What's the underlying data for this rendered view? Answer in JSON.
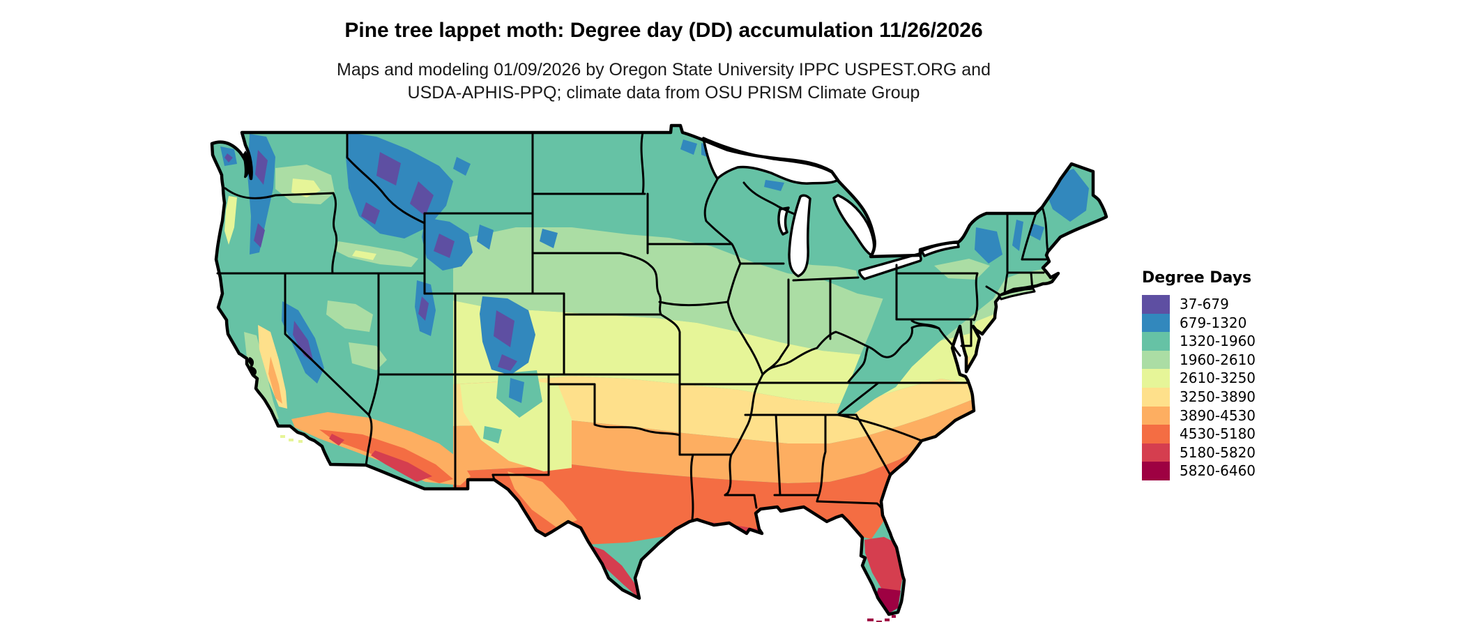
{
  "header": {
    "title": "Pine tree lappet moth: Degree day (DD) accumulation 11/26/2026",
    "subtitle_line1": "Maps and modeling 01/09/2026 by Oregon State University IPPC USPEST.ORG and",
    "subtitle_line2": "USDA-APHIS-PPQ; climate data from OSU PRISM Climate Group"
  },
  "legend": {
    "title": "Degree Days",
    "items": [
      {
        "label": "37-679",
        "color": "#5e4fa2"
      },
      {
        "label": "679-1320",
        "color": "#3288bd"
      },
      {
        "label": "1320-1960",
        "color": "#66c2a5"
      },
      {
        "label": "1960-2610",
        "color": "#abdda4"
      },
      {
        "label": "2610-3250",
        "color": "#e6f598"
      },
      {
        "label": "3250-3890",
        "color": "#fee08b"
      },
      {
        "label": "3890-4530",
        "color": "#fdae61"
      },
      {
        "label": "4530-5180",
        "color": "#f46d43"
      },
      {
        "label": "5180-5820",
        "color": "#d53e4f"
      },
      {
        "label": "5820-6460",
        "color": "#9e0142"
      }
    ]
  },
  "map": {
    "region_label": "Continental United States degree-day raster",
    "border_color": "#000000",
    "water_color": "#ffffff"
  }
}
